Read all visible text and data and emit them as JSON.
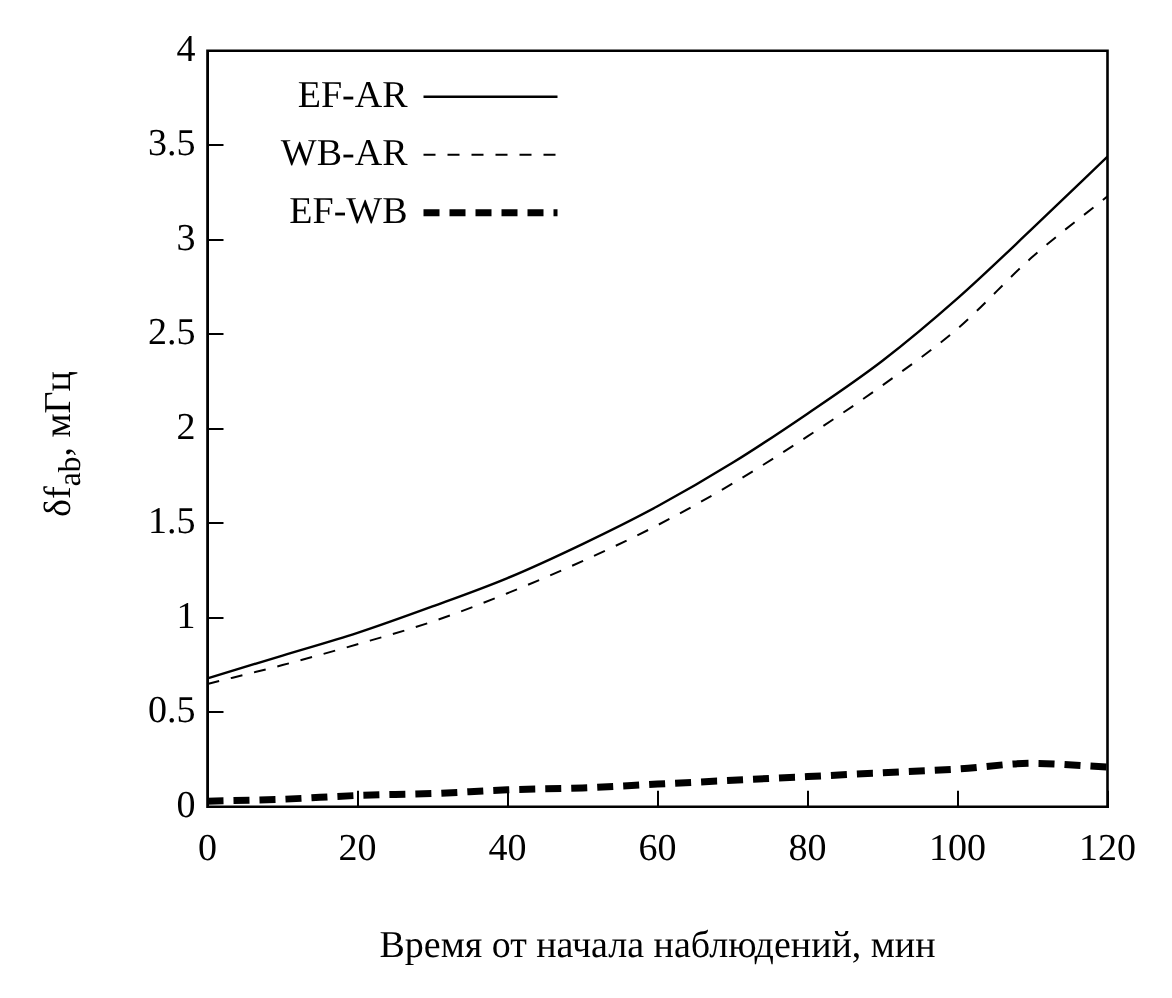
{
  "chart_data": {
    "type": "line",
    "xlabel": "Время от начала наблюдений, мин",
    "ylabel": "δf$_{ab}$, мГц",
    "x": [
      0,
      10,
      20,
      30,
      40,
      50,
      60,
      70,
      80,
      90,
      100,
      110,
      120
    ],
    "series": [
      {
        "name": "EF-AR",
        "color": "#000000",
        "line_style": "solid",
        "values": [
          0.68,
          0.8,
          0.92,
          1.06,
          1.21,
          1.39,
          1.59,
          1.82,
          2.08,
          2.36,
          2.69,
          3.06,
          3.44
        ]
      },
      {
        "name": "WB-AR",
        "color": "#000000",
        "line_style": "dashed",
        "values": [
          0.65,
          0.75,
          0.86,
          0.98,
          1.13,
          1.3,
          1.49,
          1.71,
          1.96,
          2.23,
          2.53,
          2.91,
          3.23
        ]
      },
      {
        "name": "EF-WB",
        "color": "#000000",
        "line_style": "dashed",
        "values": [
          0.03,
          0.04,
          0.06,
          0.07,
          0.09,
          0.1,
          0.12,
          0.14,
          0.16,
          0.18,
          0.2,
          0.23,
          0.21
        ]
      }
    ],
    "xlim": [
      0,
      120
    ],
    "xticks": [
      0,
      20,
      40,
      60,
      80,
      100,
      120
    ],
    "ylim": [
      0,
      4
    ],
    "yticks": [
      0,
      0.5,
      1,
      1.5,
      2,
      2.5,
      3,
      3.5,
      4
    ],
    "grid": false,
    "legend": "top left",
    "marker": "none"
  }
}
